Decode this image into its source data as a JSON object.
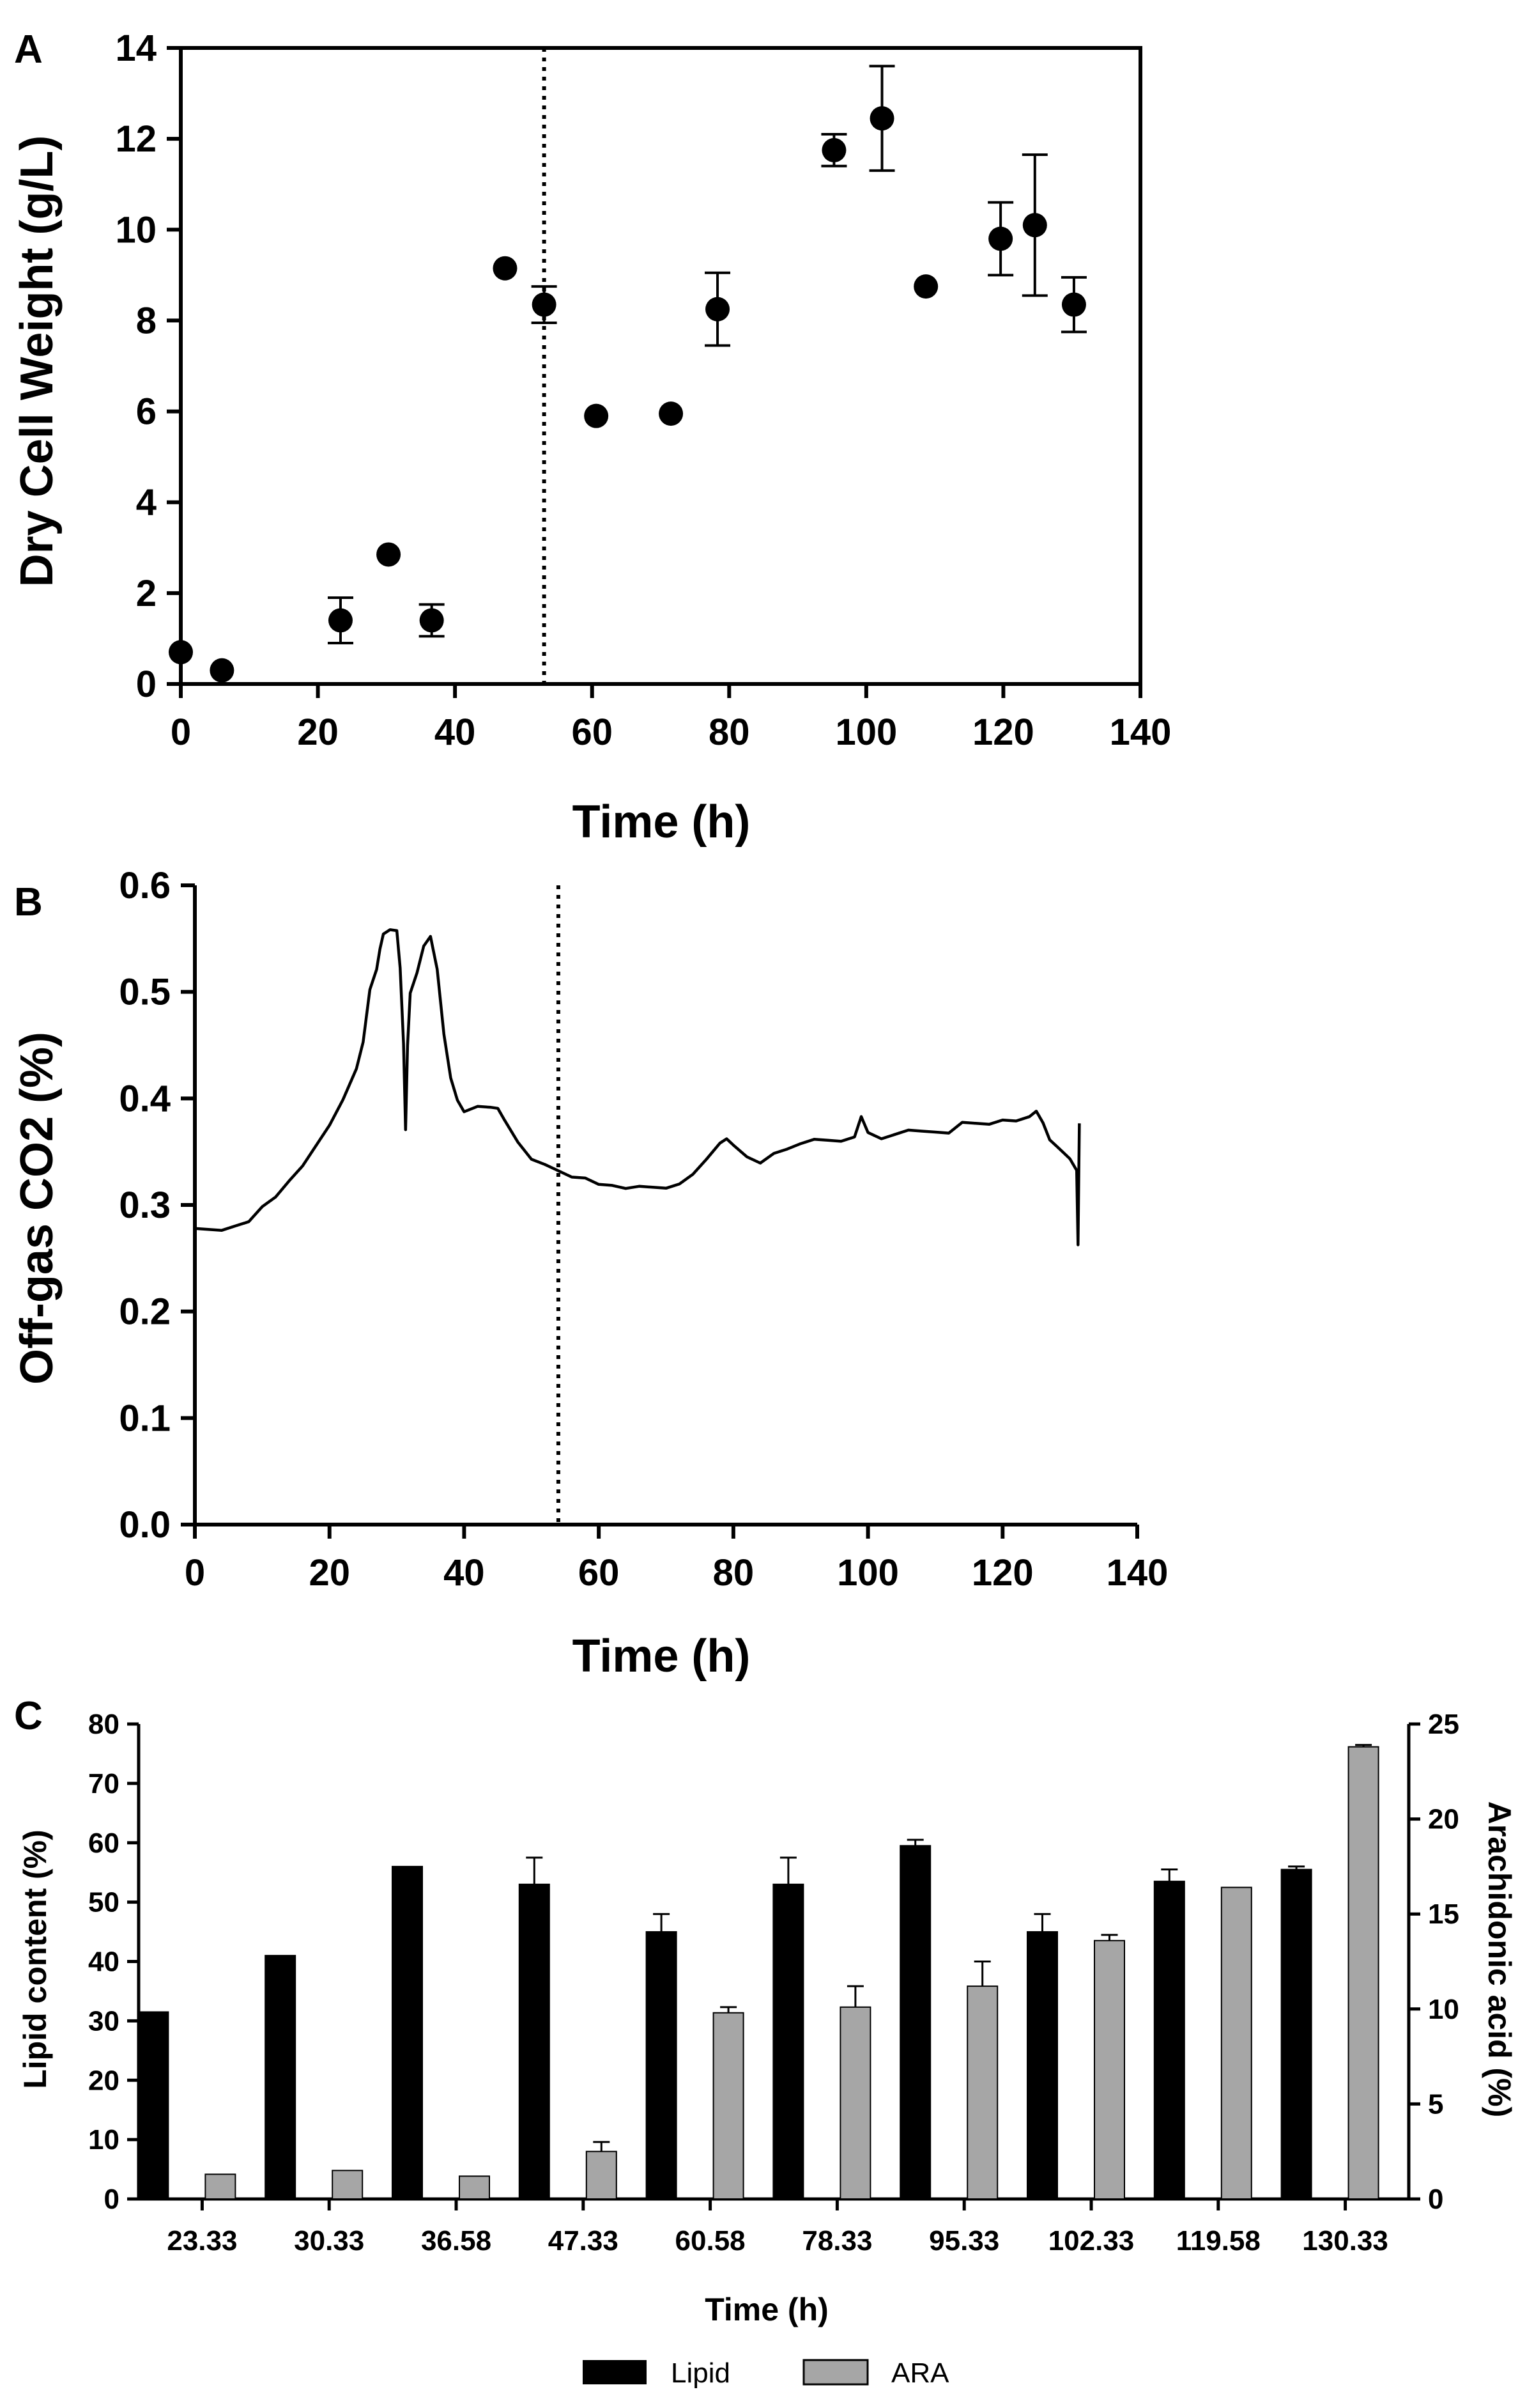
{
  "chart_data": [
    {
      "panel": "A",
      "type": "scatter",
      "xlabel": "Time (h)",
      "ylabel": "Dry Cell Weight (g/L)",
      "xlim": [
        0,
        140
      ],
      "ylim": [
        0,
        14
      ],
      "xticks": [
        0,
        20,
        40,
        60,
        80,
        100,
        120,
        140
      ],
      "yticks": [
        0,
        2,
        4,
        6,
        8,
        10,
        12,
        14
      ],
      "vline_x": 53,
      "marker_color": "#000000",
      "points": [
        {
          "x": 0,
          "y": 0.7,
          "err": 0
        },
        {
          "x": 6,
          "y": 0.3,
          "err": 0
        },
        {
          "x": 23.3,
          "y": 1.4,
          "err": 0.5
        },
        {
          "x": 30.3,
          "y": 2.85,
          "err": 0
        },
        {
          "x": 36.6,
          "y": 1.4,
          "err": 0.35
        },
        {
          "x": 47.3,
          "y": 9.15,
          "err": 0
        },
        {
          "x": 53,
          "y": 8.35,
          "err": 0.4
        },
        {
          "x": 60.6,
          "y": 5.9,
          "err": 0
        },
        {
          "x": 71.5,
          "y": 5.95,
          "err": 0
        },
        {
          "x": 78.3,
          "y": 8.25,
          "err": 0.8
        },
        {
          "x": 95.3,
          "y": 11.75,
          "err": 0.35
        },
        {
          "x": 102.3,
          "y": 12.45,
          "err": 1.15
        },
        {
          "x": 108.7,
          "y": 8.75,
          "err": 0
        },
        {
          "x": 119.6,
          "y": 9.8,
          "err": 0.8
        },
        {
          "x": 124.6,
          "y": 10.1,
          "err": 1.55
        },
        {
          "x": 130.3,
          "y": 8.35,
          "err": 0.6
        }
      ]
    },
    {
      "panel": "B",
      "type": "line",
      "xlabel": "Time (h)",
      "ylabel": "Off-gas CO2 (%)",
      "xlim": [
        0,
        140
      ],
      "ylim": [
        0,
        0.6
      ],
      "xticks": [
        0,
        20,
        40,
        60,
        80,
        100,
        120,
        140
      ],
      "yticks": [
        "0.0",
        "0.1",
        "0.2",
        "0.3",
        "0.4",
        "0.5",
        "0.6"
      ],
      "vline_x": 54,
      "line_color": "#000000",
      "x": [
        0,
        2,
        4,
        6,
        8,
        10,
        12,
        14,
        16,
        18,
        20,
        22,
        24,
        25,
        26,
        27,
        27.5,
        28,
        29,
        30,
        30.5,
        31,
        31.3,
        31.6,
        32,
        33,
        34,
        35,
        36,
        37,
        38,
        39,
        40,
        42,
        44,
        45,
        46,
        48,
        50,
        52,
        54,
        56,
        58,
        60,
        62,
        64,
        66,
        68,
        70,
        72,
        74,
        76,
        78,
        79,
        80,
        82,
        84,
        86,
        88,
        90,
        92,
        94,
        96,
        98,
        99,
        100,
        102,
        104,
        106,
        108,
        110,
        112,
        114,
        116,
        118,
        120,
        122,
        124,
        125,
        126,
        127,
        128,
        129,
        130,
        131,
        131.2,
        131.4
      ],
      "y": [
        0.275,
        0.275,
        0.275,
        0.28,
        0.285,
        0.3,
        0.31,
        0.32,
        0.335,
        0.355,
        0.375,
        0.4,
        0.43,
        0.45,
        0.5,
        0.52,
        0.54,
        0.555,
        0.56,
        0.56,
        0.52,
        0.45,
        0.37,
        0.45,
        0.5,
        0.52,
        0.54,
        0.55,
        0.52,
        0.46,
        0.42,
        0.4,
        0.39,
        0.39,
        0.39,
        0.39,
        0.38,
        0.36,
        0.345,
        0.335,
        0.33,
        0.325,
        0.325,
        0.32,
        0.32,
        0.318,
        0.315,
        0.315,
        0.315,
        0.32,
        0.33,
        0.345,
        0.355,
        0.36,
        0.355,
        0.345,
        0.34,
        0.35,
        0.355,
        0.355,
        0.36,
        0.36,
        0.36,
        0.365,
        0.385,
        0.365,
        0.36,
        0.365,
        0.37,
        0.37,
        0.37,
        0.37,
        0.375,
        0.375,
        0.375,
        0.38,
        0.38,
        0.385,
        0.385,
        0.375,
        0.36,
        0.355,
        0.35,
        0.345,
        0.335,
        0.26,
        0.375
      ]
    },
    {
      "panel": "C",
      "type": "bar",
      "xlabel": "Time (h)",
      "ylabel": "Lipid content (%)",
      "ylabel_right": "Arachidonic acid (%)",
      "categories": [
        "23.33",
        "30.33",
        "36.58",
        "47.33",
        "60.58",
        "78.33",
        "95.33",
        "102.33",
        "119.58",
        "130.33"
      ],
      "ylim": [
        0,
        80
      ],
      "ylim_right": [
        0,
        25
      ],
      "yticks": [
        0,
        10,
        20,
        30,
        40,
        50,
        60,
        70,
        80
      ],
      "yticks_right": [
        0,
        5,
        10,
        15,
        20,
        25
      ],
      "legend": "bottom",
      "series": [
        {
          "name": "Lipid",
          "axis": "left",
          "color": "#000000",
          "values": [
            31.5,
            41,
            56,
            53,
            45,
            53,
            59.5,
            45,
            53.5,
            55.5
          ],
          "errors": [
            0,
            0,
            0,
            4.5,
            3,
            4.5,
            1,
            3,
            2,
            0.5
          ]
        },
        {
          "name": "ARA",
          "axis": "right",
          "color": "#a6a6a6",
          "values": [
            1.3,
            1.5,
            1.2,
            2.5,
            9.8,
            10.1,
            11.2,
            13.6,
            16.4,
            23.8
          ],
          "errors": [
            0,
            0,
            0,
            0.5,
            0.3,
            1.1,
            1.3,
            0.3,
            0,
            0.1
          ]
        }
      ]
    }
  ],
  "panel_labels": [
    "A",
    "B",
    "C"
  ]
}
